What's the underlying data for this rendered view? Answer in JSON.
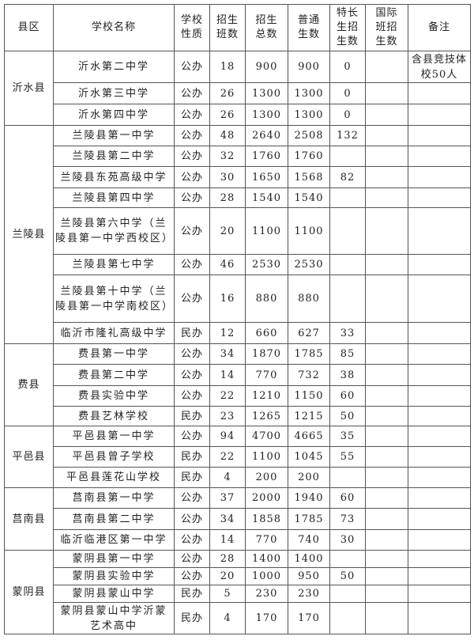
{
  "headers": [
    "县区",
    "学校名称",
    "学校\n性质",
    "招生\n班数",
    "招生\n总数",
    "普通\n生数",
    "特长\n生招\n生数",
    "国际\n班招\n生数",
    "备注"
  ],
  "groups": [
    {
      "county": "沂水县",
      "rows": [
        {
          "name": "沂水第二中学",
          "type": "公办",
          "classes": "18",
          "total": "900",
          "regular": "900",
          "special": "0",
          "intl": "",
          "note": "含县竞技体校50人"
        },
        {
          "name": "沂水第三中学",
          "type": "公办",
          "classes": "26",
          "total": "1300",
          "regular": "1300",
          "special": "0",
          "intl": "",
          "note": ""
        },
        {
          "name": "沂水第四中学",
          "type": "公办",
          "classes": "26",
          "total": "1300",
          "regular": "1300",
          "special": "0",
          "intl": "",
          "note": ""
        }
      ]
    },
    {
      "county": "兰陵县",
      "rows": [
        {
          "name": "兰陵县第一中学",
          "type": "公办",
          "classes": "48",
          "total": "2640",
          "regular": "2508",
          "special": "132",
          "intl": "",
          "note": ""
        },
        {
          "name": "兰陵县第二中学",
          "type": "公办",
          "classes": "32",
          "total": "1760",
          "regular": "1760",
          "special": "",
          "intl": "",
          "note": ""
        },
        {
          "name": "兰陵县东苑高级中学",
          "type": "公办",
          "classes": "30",
          "total": "1650",
          "regular": "1568",
          "special": "82",
          "intl": "",
          "note": ""
        },
        {
          "name": "兰陵县第四中学",
          "type": "公办",
          "classes": "28",
          "total": "1540",
          "regular": "1540",
          "special": "",
          "intl": "",
          "note": ""
        },
        {
          "name": "兰陵县第六中学（兰陵县第一中学西校区）",
          "type": "公办",
          "classes": "20",
          "total": "1100",
          "regular": "1100",
          "special": "",
          "intl": "",
          "note": ""
        },
        {
          "name": "兰陵县第七中学",
          "type": "公办",
          "classes": "46",
          "total": "2530",
          "regular": "2530",
          "special": "",
          "intl": "",
          "note": ""
        },
        {
          "name": "兰陵县第十中学（兰陵县第一中学南校区）",
          "type": "公办",
          "classes": "16",
          "total": "880",
          "regular": "880",
          "special": "",
          "intl": "",
          "note": ""
        },
        {
          "name": "临沂市隆礼高级中学",
          "type": "民办",
          "classes": "12",
          "total": "660",
          "regular": "627",
          "special": "33",
          "intl": "",
          "note": ""
        }
      ]
    },
    {
      "county": "费县",
      "rows": [
        {
          "name": "费县第一中学",
          "type": "公办",
          "classes": "34",
          "total": "1870",
          "regular": "1785",
          "special": "85",
          "intl": "",
          "note": ""
        },
        {
          "name": "费县第二中学",
          "type": "公办",
          "classes": "14",
          "total": "770",
          "regular": "732",
          "special": "38",
          "intl": "",
          "note": ""
        },
        {
          "name": "费县实验中学",
          "type": "公办",
          "classes": "22",
          "total": "1210",
          "regular": "1150",
          "special": "60",
          "intl": "",
          "note": ""
        },
        {
          "name": "费县艺林学校",
          "type": "民办",
          "classes": "23",
          "total": "1265",
          "regular": "1215",
          "special": "50",
          "intl": "",
          "note": ""
        }
      ]
    },
    {
      "county": "平邑县",
      "rows": [
        {
          "name": "平邑县第一中学",
          "type": "公办",
          "classes": "94",
          "total": "4700",
          "regular": "4665",
          "special": "35",
          "intl": "",
          "note": ""
        },
        {
          "name": "平邑县曾子学校",
          "type": "民办",
          "classes": "22",
          "total": "1100",
          "regular": "1045",
          "special": "55",
          "intl": "",
          "note": ""
        },
        {
          "name": "平邑县莲花山学校",
          "type": "民办",
          "classes": "4",
          "total": "200",
          "regular": "200",
          "special": "",
          "intl": "",
          "note": ""
        }
      ]
    },
    {
      "county": "莒南县",
      "rows": [
        {
          "name": "莒南县第一中学",
          "type": "公办",
          "classes": "37",
          "total": "2000",
          "regular": "1940",
          "special": "60",
          "intl": "",
          "note": ""
        },
        {
          "name": "莒南县第二中学",
          "type": "公办",
          "classes": "34",
          "total": "1858",
          "regular": "1785",
          "special": "73",
          "intl": "",
          "note": ""
        },
        {
          "name": "临沂临港区第一中学",
          "type": "公办",
          "classes": "14",
          "total": "770",
          "regular": "740",
          "special": "30",
          "intl": "",
          "note": ""
        }
      ]
    },
    {
      "county": "蒙阴县",
      "rows": [
        {
          "name": "蒙阴县第一中学",
          "type": "公办",
          "classes": "28",
          "total": "1400",
          "regular": "1400",
          "special": "",
          "intl": "",
          "note": ""
        },
        {
          "name": "蒙阴县实验中学",
          "type": "公办",
          "classes": "20",
          "total": "1000",
          "regular": "950",
          "special": "50",
          "intl": "",
          "note": ""
        },
        {
          "name": "蒙阴县蒙山中学",
          "type": "民办",
          "classes": "5",
          "total": "230",
          "regular": "230",
          "special": "",
          "intl": "",
          "note": ""
        },
        {
          "name": "蒙阴县蒙山中学沂蒙艺术高中",
          "type": "民办",
          "classes": "4",
          "total": "170",
          "regular": "170",
          "special": "",
          "intl": "",
          "note": ""
        }
      ]
    }
  ]
}
